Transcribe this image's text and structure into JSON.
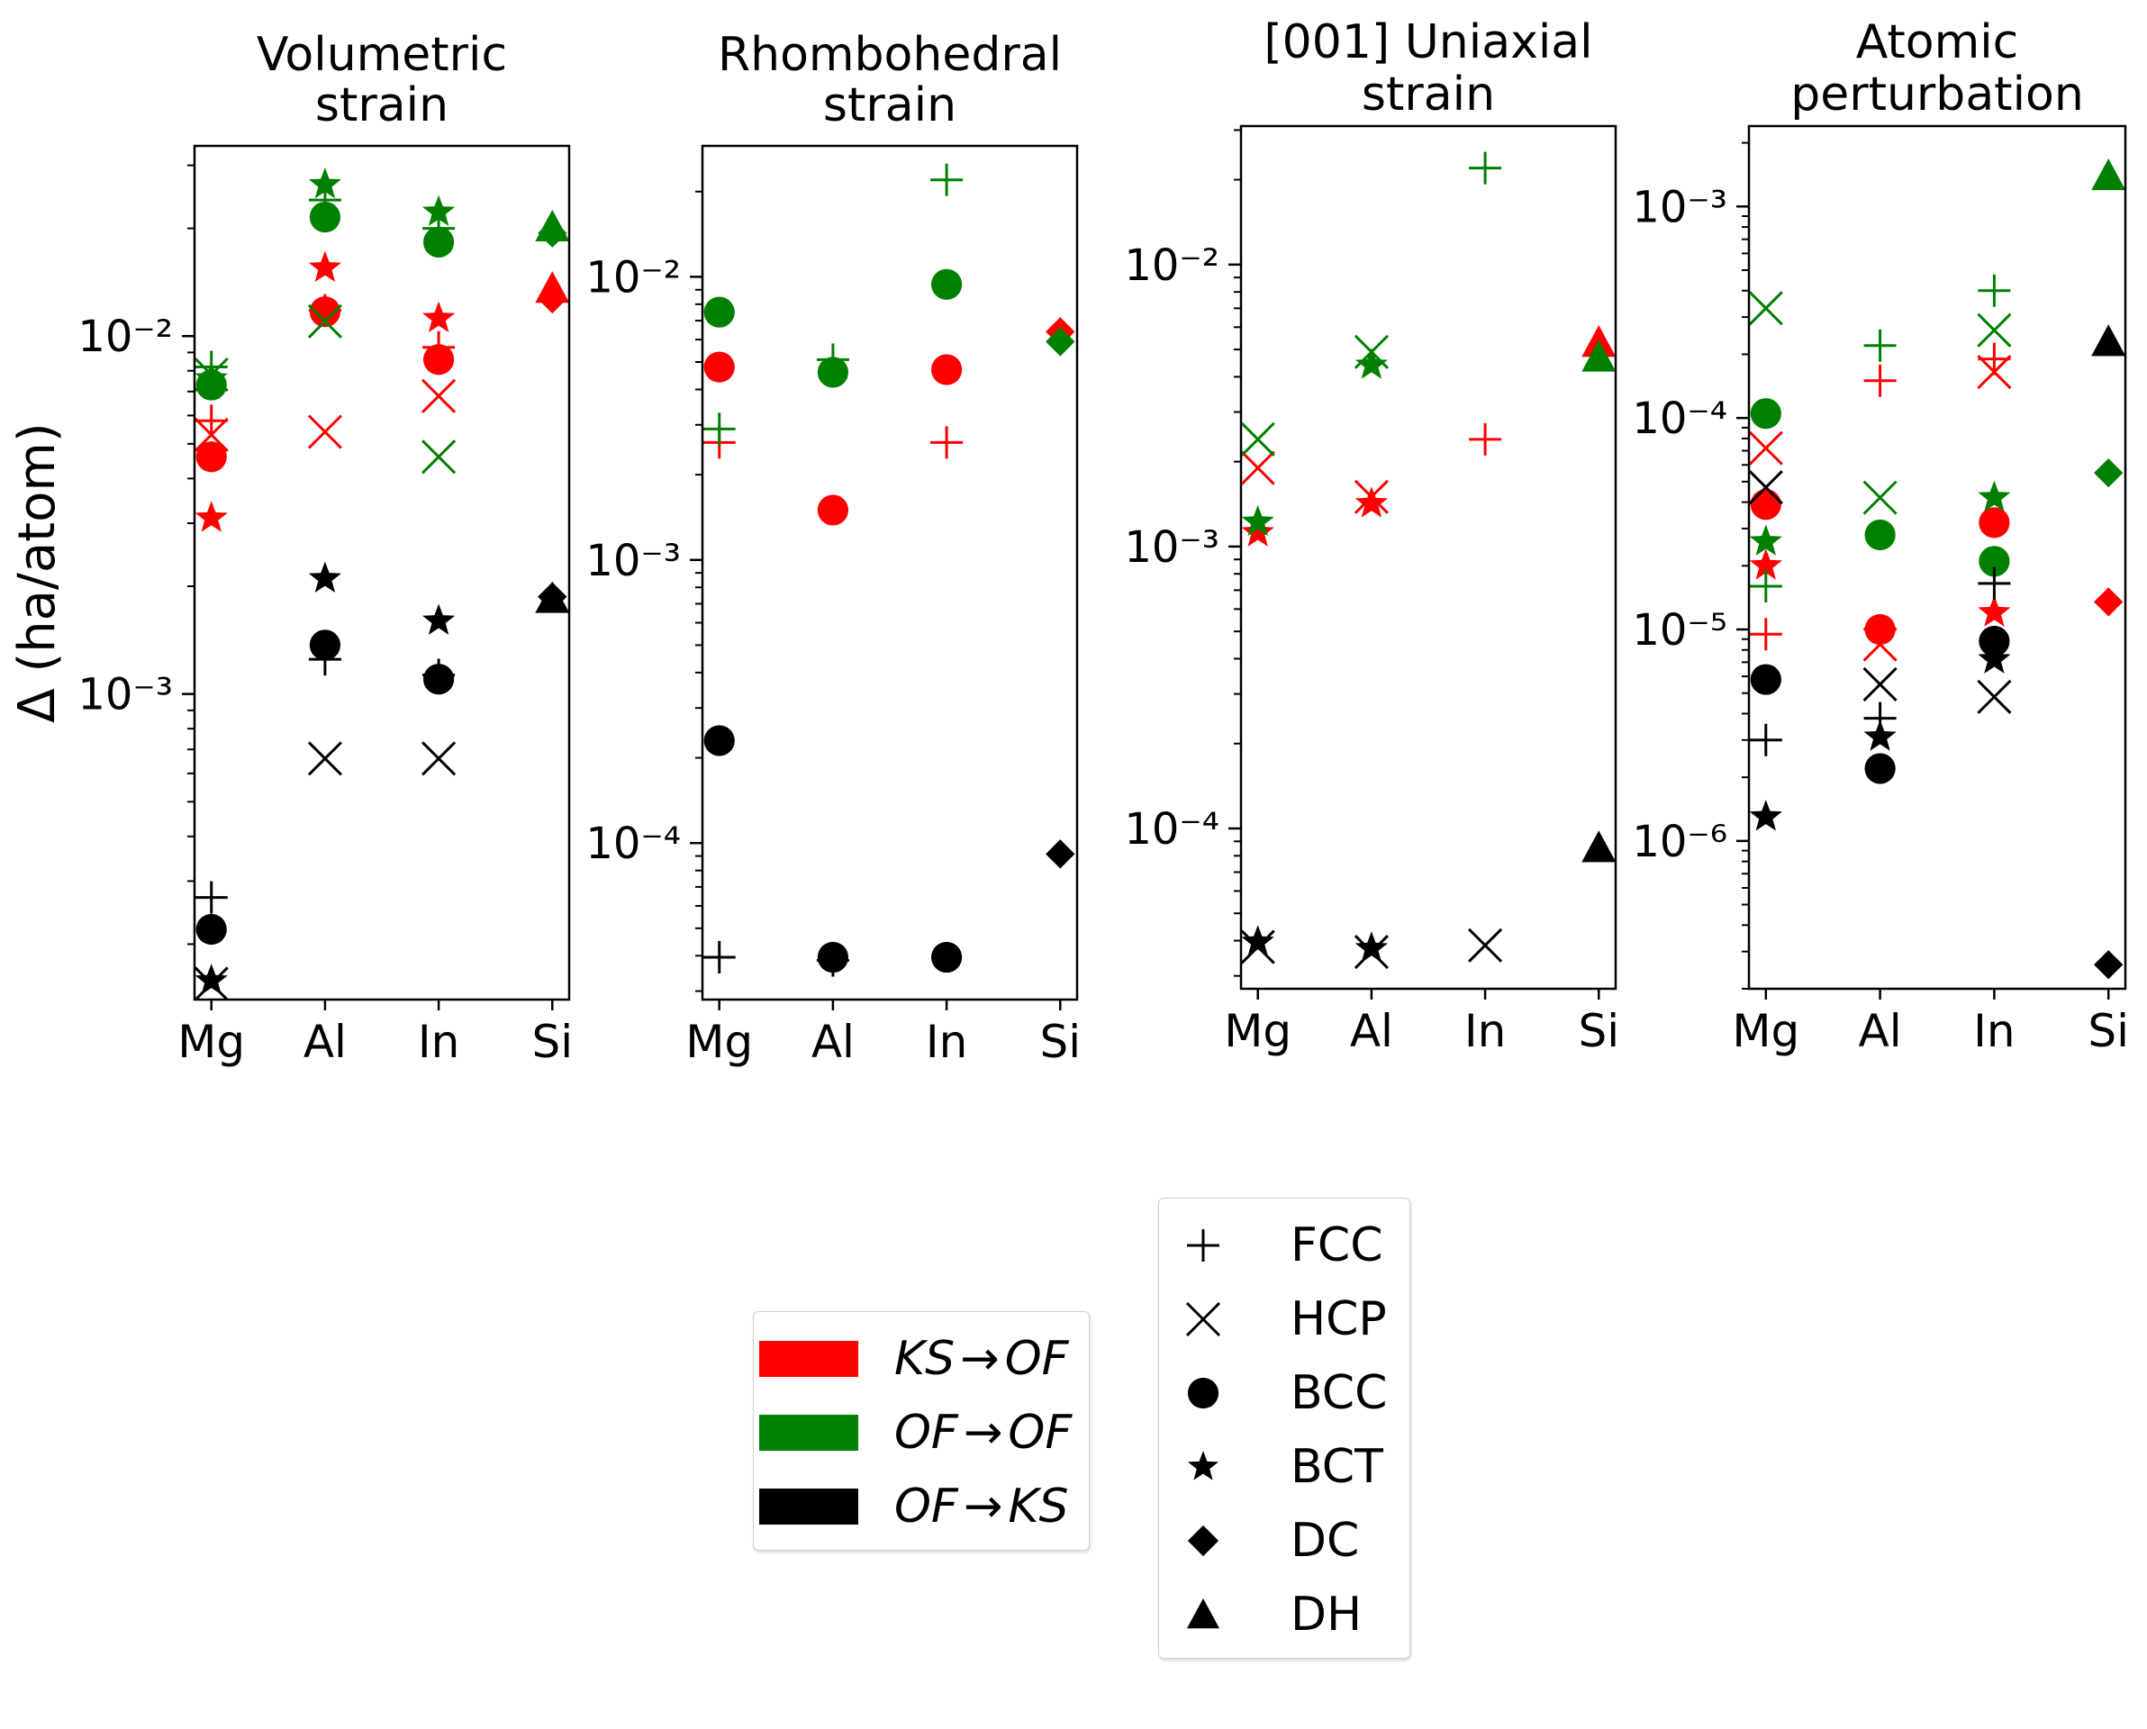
{
  "chart_data": [
    {
      "type": "scatter",
      "title": "Volumetric\nstrain",
      "ylabel": "Δ (ha/atom)",
      "yscale": "log",
      "ylim": [
        0.00014,
        0.034
      ],
      "categories": [
        "Mg",
        "Al",
        "In",
        "Si"
      ],
      "yticks": [
        {
          "value": 0.01,
          "label": "10⁻²"
        },
        {
          "value": 0.001,
          "label": "10⁻³"
        }
      ],
      "points": [
        {
          "cat": "Mg",
          "series": "KS→OF",
          "structure": "FCC",
          "y": 0.0058
        },
        {
          "cat": "Mg",
          "series": "KS→OF",
          "structure": "HCP",
          "y": 0.0053
        },
        {
          "cat": "Mg",
          "series": "KS→OF",
          "structure": "BCC",
          "y": 0.0046
        },
        {
          "cat": "Mg",
          "series": "KS→OF",
          "structure": "BCT",
          "y": 0.0031
        },
        {
          "cat": "Mg",
          "series": "OF→OF",
          "structure": "FCC",
          "y": 0.0082
        },
        {
          "cat": "Mg",
          "series": "OF→OF",
          "structure": "HCP",
          "y": 0.0078
        },
        {
          "cat": "Mg",
          "series": "OF→OF",
          "structure": "BCC",
          "y": 0.0073
        },
        {
          "cat": "Mg",
          "series": "OF→OF",
          "structure": "BCT",
          "y": 0.0076
        },
        {
          "cat": "Mg",
          "series": "OF→KS",
          "structure": "FCC",
          "y": 0.00027
        },
        {
          "cat": "Mg",
          "series": "OF→KS",
          "structure": "HCP",
          "y": 0.000155
        },
        {
          "cat": "Mg",
          "series": "OF→KS",
          "structure": "BCC",
          "y": 0.00022
        },
        {
          "cat": "Mg",
          "series": "OF→KS",
          "structure": "BCT",
          "y": 0.000158
        },
        {
          "cat": "Al",
          "series": "KS→OF",
          "structure": "FCC",
          "y": 0.0118
        },
        {
          "cat": "Al",
          "series": "KS→OF",
          "structure": "HCP",
          "y": 0.0054
        },
        {
          "cat": "Al",
          "series": "KS→OF",
          "structure": "BCC",
          "y": 0.0117
        },
        {
          "cat": "Al",
          "series": "KS→OF",
          "structure": "BCT",
          "y": 0.0155
        },
        {
          "cat": "Al",
          "series": "OF→OF",
          "structure": "FCC",
          "y": 0.024
        },
        {
          "cat": "Al",
          "series": "OF→OF",
          "structure": "HCP",
          "y": 0.011
        },
        {
          "cat": "Al",
          "series": "OF→OF",
          "structure": "BCC",
          "y": 0.0215
        },
        {
          "cat": "Al",
          "series": "OF→OF",
          "structure": "BCT",
          "y": 0.0265
        },
        {
          "cat": "Al",
          "series": "OF→KS",
          "structure": "FCC",
          "y": 0.00125
        },
        {
          "cat": "Al",
          "series": "OF→KS",
          "structure": "HCP",
          "y": 0.00066
        },
        {
          "cat": "Al",
          "series": "OF→KS",
          "structure": "BCC",
          "y": 0.00137
        },
        {
          "cat": "Al",
          "series": "OF→KS",
          "structure": "BCT",
          "y": 0.0021
        },
        {
          "cat": "In",
          "series": "KS→OF",
          "structure": "FCC",
          "y": 0.0093
        },
        {
          "cat": "In",
          "series": "KS→OF",
          "structure": "HCP",
          "y": 0.0068
        },
        {
          "cat": "In",
          "series": "KS→OF",
          "structure": "BCC",
          "y": 0.0086
        },
        {
          "cat": "In",
          "series": "KS→OF",
          "structure": "BCT",
          "y": 0.0112
        },
        {
          "cat": "In",
          "series": "OF→OF",
          "structure": "FCC",
          "y": 0.02
        },
        {
          "cat": "In",
          "series": "OF→OF",
          "structure": "HCP",
          "y": 0.0046
        },
        {
          "cat": "In",
          "series": "OF→OF",
          "structure": "BCC",
          "y": 0.0183
        },
        {
          "cat": "In",
          "series": "OF→OF",
          "structure": "BCT",
          "y": 0.0222
        },
        {
          "cat": "In",
          "series": "OF→KS",
          "structure": "FCC",
          "y": 0.00113
        },
        {
          "cat": "In",
          "series": "OF→KS",
          "structure": "HCP",
          "y": 0.00066
        },
        {
          "cat": "In",
          "series": "OF→KS",
          "structure": "BCC",
          "y": 0.0011
        },
        {
          "cat": "In",
          "series": "OF→KS",
          "structure": "BCT",
          "y": 0.0016
        },
        {
          "cat": "Si",
          "series": "KS→OF",
          "structure": "DC",
          "y": 0.0127
        },
        {
          "cat": "Si",
          "series": "KS→OF",
          "structure": "DH",
          "y": 0.0136
        },
        {
          "cat": "Si",
          "series": "OF→OF",
          "structure": "DC",
          "y": 0.0194
        },
        {
          "cat": "Si",
          "series": "OF→OF",
          "structure": "DH",
          "y": 0.0202
        },
        {
          "cat": "Si",
          "series": "OF→KS",
          "structure": "DC",
          "y": 0.00187
        },
        {
          "cat": "Si",
          "series": "OF→KS",
          "structure": "DH",
          "y": 0.00185
        }
      ]
    },
    {
      "type": "scatter",
      "title": "Rhombohedral\nstrain",
      "yscale": "log",
      "ylim": [
        2.8e-05,
        0.029
      ],
      "categories": [
        "Mg",
        "Al",
        "In",
        "Si"
      ],
      "yticks": [
        {
          "value": 0.01,
          "label": "10⁻²"
        },
        {
          "value": 0.001,
          "label": "10⁻³"
        },
        {
          "value": 0.0001,
          "label": "10⁻⁴"
        }
      ],
      "points": [
        {
          "cat": "Mg",
          "series": "KS→OF",
          "structure": "FCC",
          "y": 0.0026
        },
        {
          "cat": "Mg",
          "series": "KS→OF",
          "structure": "BCC",
          "y": 0.0048
        },
        {
          "cat": "Mg",
          "series": "OF→OF",
          "structure": "FCC",
          "y": 0.0029
        },
        {
          "cat": "Mg",
          "series": "OF→OF",
          "structure": "BCC",
          "y": 0.0075
        },
        {
          "cat": "Mg",
          "series": "OF→KS",
          "structure": "FCC",
          "y": 3.95e-05
        },
        {
          "cat": "Mg",
          "series": "OF→KS",
          "structure": "BCC",
          "y": 0.00023
        },
        {
          "cat": "Al",
          "series": "KS→OF",
          "structure": "BCC",
          "y": 0.0015
        },
        {
          "cat": "Al",
          "series": "OF→OF",
          "structure": "FCC",
          "y": 0.0051
        },
        {
          "cat": "Al",
          "series": "OF→OF",
          "structure": "BCC",
          "y": 0.0046
        },
        {
          "cat": "Al",
          "series": "OF→KS",
          "structure": "FCC",
          "y": 3.85e-05
        },
        {
          "cat": "Al",
          "series": "OF→KS",
          "structure": "BCC",
          "y": 3.95e-05
        },
        {
          "cat": "In",
          "series": "KS→OF",
          "structure": "FCC",
          "y": 0.0026
        },
        {
          "cat": "In",
          "series": "KS→OF",
          "structure": "BCC",
          "y": 0.0047
        },
        {
          "cat": "In",
          "series": "OF→OF",
          "structure": "FCC",
          "y": 0.022
        },
        {
          "cat": "In",
          "series": "OF→OF",
          "structure": "BCC",
          "y": 0.0094
        },
        {
          "cat": "In",
          "series": "OF→KS",
          "structure": "BCC",
          "y": 3.95e-05
        },
        {
          "cat": "Si",
          "series": "KS→OF",
          "structure": "DC",
          "y": 0.0064
        },
        {
          "cat": "Si",
          "series": "OF→OF",
          "structure": "DC",
          "y": 0.0059
        },
        {
          "cat": "Si",
          "series": "OF→KS",
          "structure": "DC",
          "y": 9.15e-05
        }
      ]
    },
    {
      "type": "scatter",
      "title": "[001] Uniaxial\nstrain",
      "yscale": "log",
      "ylim": [
        2.7e-05,
        0.031
      ],
      "categories": [
        "Mg",
        "Al",
        "In",
        "Si"
      ],
      "yticks": [
        {
          "value": 0.01,
          "label": "10⁻²"
        },
        {
          "value": 0.001,
          "label": "10⁻³"
        },
        {
          "value": 0.0001,
          "label": "10⁻⁴"
        }
      ],
      "points": [
        {
          "cat": "Mg",
          "series": "KS→OF",
          "structure": "HCP",
          "y": 0.0019
        },
        {
          "cat": "Mg",
          "series": "KS→OF",
          "structure": "BCT",
          "y": 0.00112
        },
        {
          "cat": "Mg",
          "series": "OF→OF",
          "structure": "HCP",
          "y": 0.0024
        },
        {
          "cat": "Mg",
          "series": "OF→OF",
          "structure": "BCT",
          "y": 0.00122
        },
        {
          "cat": "Mg",
          "series": "OF→KS",
          "structure": "HCP",
          "y": 3.8e-05
        },
        {
          "cat": "Mg",
          "series": "OF→KS",
          "structure": "BCT",
          "y": 3.95e-05
        },
        {
          "cat": "Al",
          "series": "KS→OF",
          "structure": "HCP",
          "y": 0.0015
        },
        {
          "cat": "Al",
          "series": "KS→OF",
          "structure": "BCT",
          "y": 0.00142
        },
        {
          "cat": "Al",
          "series": "OF→OF",
          "structure": "HCP",
          "y": 0.0049
        },
        {
          "cat": "Al",
          "series": "OF→OF",
          "structure": "BCT",
          "y": 0.0044
        },
        {
          "cat": "Al",
          "series": "OF→KS",
          "structure": "HCP",
          "y": 3.65e-05
        },
        {
          "cat": "Al",
          "series": "OF→KS",
          "structure": "BCT",
          "y": 3.75e-05
        },
        {
          "cat": "In",
          "series": "KS→OF",
          "structure": "FCC",
          "y": 0.0024
        },
        {
          "cat": "In",
          "series": "OF→OF",
          "structure": "FCC",
          "y": 0.022
        },
        {
          "cat": "In",
          "series": "OF→KS",
          "structure": "HCP",
          "y": 3.85e-05
        },
        {
          "cat": "Si",
          "series": "KS→OF",
          "structure": "DH",
          "y": 0.0053
        },
        {
          "cat": "Si",
          "series": "OF→OF",
          "structure": "DH",
          "y": 0.0047
        },
        {
          "cat": "Si",
          "series": "OF→KS",
          "structure": "DH",
          "y": 8.55e-05
        }
      ]
    },
    {
      "type": "scatter",
      "title": "Atomic\nperturbation",
      "yscale": "log",
      "ylim": [
        2e-07,
        0.0024
      ],
      "categories": [
        "Mg",
        "Al",
        "In",
        "Si"
      ],
      "yticks": [
        {
          "value": 0.001,
          "label": "10⁻³"
        },
        {
          "value": 0.0001,
          "label": "10⁻⁴"
        },
        {
          "value": 1e-05,
          "label": "10⁻⁵"
        },
        {
          "value": 1e-06,
          "label": "10⁻⁶"
        }
      ],
      "points": [
        {
          "cat": "Mg",
          "series": "KS→OF",
          "structure": "FCC",
          "y": 9.5e-06
        },
        {
          "cat": "Mg",
          "series": "KS→OF",
          "structure": "HCP",
          "y": 7.2e-05
        },
        {
          "cat": "Mg",
          "series": "KS→OF",
          "structure": "BCC",
          "y": 3.9e-05
        },
        {
          "cat": "Mg",
          "series": "KS→OF",
          "structure": "BCT",
          "y": 2e-05
        },
        {
          "cat": "Mg",
          "series": "OF→OF",
          "structure": "FCC",
          "y": 1.6e-05
        },
        {
          "cat": "Mg",
          "series": "OF→OF",
          "structure": "HCP",
          "y": 0.00033
        },
        {
          "cat": "Mg",
          "series": "OF→OF",
          "structure": "BCC",
          "y": 0.000105
        },
        {
          "cat": "Mg",
          "series": "OF→OF",
          "structure": "BCT",
          "y": 2.6e-05
        },
        {
          "cat": "Mg",
          "series": "OF→KS",
          "structure": "FCC",
          "y": 3e-06
        },
        {
          "cat": "Mg",
          "series": "OF→KS",
          "structure": "HCP",
          "y": 4.7e-05
        },
        {
          "cat": "Mg",
          "series": "OF→KS",
          "structure": "BCC",
          "y": 5.8e-06
        },
        {
          "cat": "Mg",
          "series": "OF→KS",
          "structure": "BCT",
          "y": 1.3e-06
        },
        {
          "cat": "Al",
          "series": "KS→OF",
          "structure": "FCC",
          "y": 0.00015
        },
        {
          "cat": "Al",
          "series": "KS→OF",
          "structure": "HCP",
          "y": 8.5e-06
        },
        {
          "cat": "Al",
          "series": "KS→OF",
          "structure": "BCC",
          "y": 1e-05
        },
        {
          "cat": "Al",
          "series": "OF→OF",
          "structure": "FCC",
          "y": 0.00022
        },
        {
          "cat": "Al",
          "series": "OF→OF",
          "structure": "HCP",
          "y": 4.2e-05
        },
        {
          "cat": "Al",
          "series": "OF→OF",
          "structure": "BCC",
          "y": 2.8e-05
        },
        {
          "cat": "Al",
          "series": "OF→KS",
          "structure": "FCC",
          "y": 3.8e-06
        },
        {
          "cat": "Al",
          "series": "OF→KS",
          "structure": "HCP",
          "y": 5.5e-06
        },
        {
          "cat": "Al",
          "series": "OF→KS",
          "structure": "BCC",
          "y": 2.2e-06
        },
        {
          "cat": "Al",
          "series": "OF→KS",
          "structure": "BCT",
          "y": 3.1e-06
        },
        {
          "cat": "In",
          "series": "KS→OF",
          "structure": "FCC",
          "y": 0.00019
        },
        {
          "cat": "In",
          "series": "KS→OF",
          "structure": "HCP",
          "y": 0.000165
        },
        {
          "cat": "In",
          "series": "KS→OF",
          "structure": "BCC",
          "y": 3.2e-05
        },
        {
          "cat": "In",
          "series": "KS→OF",
          "structure": "BCT",
          "y": 1.2e-05
        },
        {
          "cat": "In",
          "series": "OF→OF",
          "structure": "FCC",
          "y": 0.0004
        },
        {
          "cat": "In",
          "series": "OF→OF",
          "structure": "HCP",
          "y": 0.00026
        },
        {
          "cat": "In",
          "series": "OF→OF",
          "structure": "BCC",
          "y": 2.1e-05
        },
        {
          "cat": "In",
          "series": "OF→OF",
          "structure": "BCT",
          "y": 4.2e-05
        },
        {
          "cat": "In",
          "series": "OF→KS",
          "structure": "FCC",
          "y": 1.65e-05
        },
        {
          "cat": "In",
          "series": "OF→KS",
          "structure": "HCP",
          "y": 4.8e-06
        },
        {
          "cat": "In",
          "series": "OF→KS",
          "structure": "BCC",
          "y": 8.8e-06
        },
        {
          "cat": "In",
          "series": "OF→KS",
          "structure": "BCT",
          "y": 7.2e-06
        },
        {
          "cat": "Si",
          "series": "KS→OF",
          "structure": "DC",
          "y": 1.35e-05
        },
        {
          "cat": "Si",
          "series": "OF→OF",
          "structure": "DC",
          "y": 5.5e-05
        },
        {
          "cat": "Si",
          "series": "OF→OF",
          "structure": "DH",
          "y": 0.0014
        },
        {
          "cat": "Si",
          "series": "OF→KS",
          "structure": "DC",
          "y": 2.6e-07
        },
        {
          "cat": "Si",
          "series": "OF→KS",
          "structure": "DH",
          "y": 0.00023
        }
      ]
    }
  ],
  "legend_series": [
    {
      "lhs": "KS",
      "rhs": "OF",
      "arrow": "→",
      "color": "#ff0000"
    },
    {
      "lhs": "OF",
      "rhs": "OF",
      "arrow": "→",
      "color": "#008000"
    },
    {
      "lhs": "OF",
      "rhs": "KS",
      "arrow": "→",
      "color": "#000000"
    }
  ],
  "legend_structures": [
    {
      "label": "FCC",
      "marker": "plus"
    },
    {
      "label": "HCP",
      "marker": "x"
    },
    {
      "label": "BCC",
      "marker": "circle"
    },
    {
      "label": "BCT",
      "marker": "star"
    },
    {
      "label": "DC",
      "marker": "diamond"
    },
    {
      "label": "DH",
      "marker": "triangle"
    }
  ],
  "colors": {
    "KS→OF": "#ff0000",
    "OF→OF": "#008000",
    "OF→KS": "#000000"
  }
}
